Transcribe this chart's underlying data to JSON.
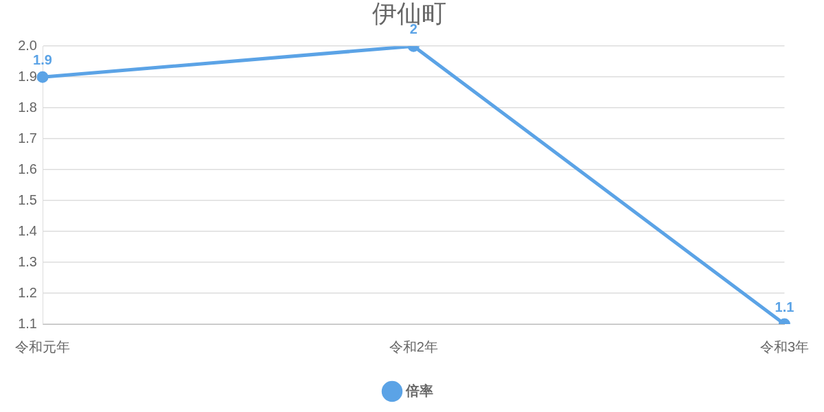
{
  "chart_data": {
    "type": "line",
    "title": "伊仙町",
    "categories": [
      "令和元年",
      "令和2年",
      "令和3年"
    ],
    "series": [
      {
        "name": "倍率",
        "color": "#5ba3e6",
        "values": [
          1.9,
          2,
          1.1
        ]
      }
    ],
    "ylim": [
      1.1,
      2.0
    ],
    "yticks": [
      1.1,
      1.2,
      1.3,
      1.4,
      1.5,
      1.6,
      1.7,
      1.8,
      1.9,
      {
        "value": 2.0,
        "label": "2.0"
      }
    ],
    "grid": "y",
    "legend": "bottom",
    "data_labels": true,
    "marker": "circle",
    "line_style": "solid"
  }
}
